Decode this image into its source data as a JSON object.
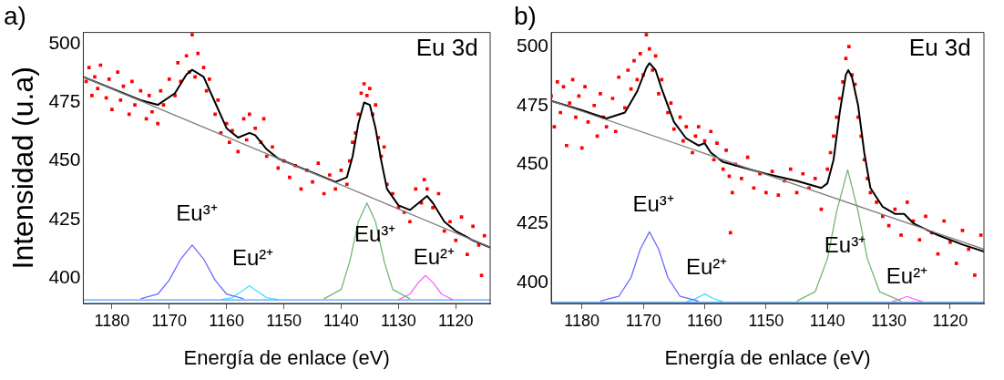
{
  "chart_data": [
    {
      "type": "scatter",
      "title": "a)",
      "xlabel": "Energía de enlace (eV)",
      "ylabel": "Intensidad (u.a)",
      "xlim": [
        1185,
        1114
      ],
      "xticks": [
        1180,
        1170,
        1160,
        1150,
        1140,
        1130,
        1120
      ],
      "ylim": [
        389,
        505
      ],
      "yticks": [
        400,
        425,
        450,
        475,
        500
      ],
      "annotations": [
        "Eu 3d",
        "Eu³⁺",
        "Eu²⁺",
        "Eu³⁺",
        "Eu²⁺"
      ],
      "series": [
        {
          "marker": "square",
          "color": "#ff0000",
          "x": [
            1184.5,
            1184,
            1183.5,
            1183,
            1182.5,
            1182,
            1181,
            1180.5,
            1180,
            1179,
            1178.5,
            1178,
            1177,
            1176.5,
            1176,
            1175,
            1174,
            1173.5,
            1173,
            1172,
            1171.5,
            1171,
            1170,
            1169,
            1168.5,
            1168,
            1167,
            1166.5,
            1166,
            1165.5,
            1165,
            1164,
            1163.5,
            1163,
            1162,
            1161.5,
            1161,
            1160,
            1159.5,
            1159,
            1158,
            1157,
            1156.5,
            1156,
            1155,
            1154,
            1153.5,
            1153,
            1152,
            1151,
            1150,
            1149,
            1148,
            1147,
            1146,
            1145,
            1144,
            1143,
            1142,
            1141,
            1140,
            1139,
            1138.5,
            1138,
            1137.5,
            1137,
            1136.5,
            1136,
            1135.5,
            1135,
            1134.5,
            1134,
            1133.5,
            1133,
            1132.5,
            1132,
            1131,
            1130,
            1129,
            1128,
            1127,
            1126,
            1125.5,
            1125,
            1124,
            1123,
            1122,
            1121,
            1120,
            1119,
            1118,
            1117,
            1116,
            1115.5,
            1115
          ],
          "values": [
            484,
            490,
            478,
            486,
            481,
            491,
            477,
            485,
            472,
            488,
            476,
            482,
            470,
            484,
            474,
            480,
            468,
            478,
            471,
            466,
            480,
            474,
            485,
            478,
            492,
            484,
            495,
            488,
            504,
            486,
            496,
            490,
            480,
            485,
            470,
            476,
            462,
            466,
            458,
            463,
            454,
            468,
            459,
            470,
            464,
            458,
            468,
            452,
            456,
            447,
            450,
            443,
            448,
            438,
            446,
            441,
            449,
            436,
            444,
            438,
            446,
            440,
            450,
            458,
            462,
            470,
            479,
            483,
            478,
            481,
            470,
            474,
            460,
            452,
            456,
            440,
            436,
            430,
            428,
            424,
            438,
            432,
            442,
            438,
            430,
            436,
            420,
            424,
            416,
            426,
            410,
            422,
            414,
            401,
            418
          ]
        },
        {
          "type": "line",
          "color": "#808080",
          "x": [
            1185,
            1114
          ],
          "values": [
            486,
            413
          ]
        },
        {
          "type": "line",
          "color": "#4da6ff",
          "x": [
            1185,
            1114
          ],
          "values": [
            390.5,
            390.5
          ]
        },
        {
          "type": "line",
          "color": "#6b6bff",
          "x": [
            1175,
            1172,
            1170,
            1168,
            1166,
            1164,
            1162,
            1160,
            1157
          ],
          "values": [
            391,
            393,
            399,
            408,
            414,
            408,
            399,
            393,
            391
          ]
        },
        {
          "type": "line",
          "color": "#40e0ff",
          "x": [
            1161,
            1159,
            1157.5,
            1156,
            1154.5,
            1153,
            1151
          ],
          "values": [
            390.6,
            391.5,
            394,
            396.5,
            394,
            391.5,
            390.6
          ]
        },
        {
          "type": "line",
          "color": "#70b870",
          "x": [
            1143,
            1140,
            1138.5,
            1137,
            1135.5,
            1134,
            1132.5,
            1131,
            1128
          ],
          "values": [
            391,
            395,
            407,
            424,
            432,
            424,
            407,
            395,
            391
          ]
        },
        {
          "type": "line",
          "color": "#ff66ff",
          "x": [
            1130,
            1128,
            1126.5,
            1125.3,
            1124,
            1122.5,
            1120.5
          ],
          "values": [
            390.6,
            393,
            398,
            401,
            398,
            393,
            390.6
          ]
        },
        {
          "type": "line",
          "color": "#000000",
          "x": [
            1185,
            1175,
            1172,
            1169,
            1167,
            1166,
            1164,
            1162,
            1160,
            1158,
            1156,
            1155,
            1153,
            1151,
            1145,
            1141,
            1139,
            1138,
            1137,
            1136,
            1135,
            1134,
            1133,
            1132,
            1130,
            1128,
            1126,
            1125,
            1124,
            1122,
            1120,
            1117,
            1114
          ],
          "values": [
            486,
            476,
            474,
            479,
            487,
            489,
            486,
            475,
            464,
            460,
            462,
            461,
            455,
            451,
            445,
            441,
            443,
            452,
            466,
            475,
            474,
            464,
            450,
            438,
            431,
            429,
            433,
            435,
            432,
            424,
            420,
            416,
            413
          ]
        }
      ]
    },
    {
      "type": "scatter",
      "title": "b)",
      "xlabel": "Energía de enlace (eV)",
      "xlim": [
        1185,
        1114.5
      ],
      "xticks": [
        1180,
        1170,
        1160,
        1150,
        1140,
        1130,
        1120
      ],
      "ylim": [
        391,
        506
      ],
      "yticks": [
        400,
        425,
        450,
        475,
        500
      ],
      "annotations": [
        "Eu 3d",
        "Eu³⁺",
        "Eu²⁺",
        "Eu³⁺",
        "Eu²⁺"
      ],
      "series": [
        {
          "marker": "square",
          "color": "#ff0000",
          "x": [
            1185,
            1184.5,
            1184,
            1183.5,
            1183,
            1182.5,
            1182,
            1181.5,
            1181,
            1180.5,
            1180,
            1179.5,
            1179,
            1178,
            1177.5,
            1177,
            1176.5,
            1176,
            1175,
            1174.5,
            1174,
            1173,
            1172.5,
            1172,
            1171.5,
            1171,
            1170.5,
            1170,
            1169.5,
            1169,
            1168.5,
            1168,
            1167.5,
            1167,
            1166,
            1165.5,
            1165,
            1164,
            1163.5,
            1163,
            1162,
            1161.5,
            1161,
            1160,
            1159,
            1158.5,
            1158,
            1157,
            1156.5,
            1156,
            1155.8,
            1155.5,
            1155,
            1154,
            1153,
            1152,
            1151,
            1150,
            1149,
            1148,
            1147,
            1146,
            1145,
            1144,
            1143,
            1142,
            1141,
            1140,
            1139.5,
            1139,
            1138.5,
            1138,
            1137.5,
            1137,
            1136.5,
            1136,
            1135.5,
            1135,
            1134.5,
            1134,
            1133.5,
            1133,
            1132,
            1131,
            1130,
            1129,
            1128,
            1127,
            1126,
            1125,
            1124,
            1123,
            1122,
            1121,
            1120,
            1119,
            1118,
            1117,
            1116,
            1115
          ],
          "values": [
            479,
            466,
            485,
            472,
            483,
            458,
            476,
            486,
            470,
            479,
            457,
            483,
            468,
            475,
            462,
            480,
            470,
            466,
            478,
            464,
            487,
            474,
            490,
            482,
            494,
            486,
            497,
            488,
            505,
            499,
            490,
            496,
            480,
            486,
            472,
            476,
            465,
            470,
            460,
            466,
            455,
            462,
            466,
            460,
            464,
            452,
            459,
            448,
            456,
            445,
            421,
            438,
            450,
            444,
            453,
            440,
            446,
            438,
            447,
            437,
            443,
            448,
            438,
            446,
            440,
            444,
            431,
            448,
            455,
            462,
            470,
            478,
            485,
            495,
            500,
            488,
            484,
            470,
            462,
            452,
            444,
            438,
            434,
            428,
            424,
            431,
            420,
            434,
            426,
            418,
            428,
            421,
            412,
            426,
            417,
            408,
            422,
            414,
            403,
            420
          ]
        },
        {
          "type": "line",
          "color": "#808080",
          "x": [
            1185,
            1114.5
          ],
          "values": [
            477,
            414
          ]
        },
        {
          "type": "line",
          "color": "#4da6ff",
          "x": [
            1185,
            1114.5
          ],
          "values": [
            391.5,
            391.5
          ]
        },
        {
          "type": "line",
          "color": "#6b6bff",
          "x": [
            1177,
            1174,
            1172,
            1170.5,
            1169,
            1167.5,
            1166,
            1164,
            1161
          ],
          "values": [
            392,
            394,
            402,
            414,
            421.4,
            414,
            402,
            394,
            392
          ]
        },
        {
          "type": "line",
          "color": "#40e0ff",
          "x": [
            1163,
            1161.5,
            1160,
            1158.5,
            1157
          ],
          "values": [
            391.7,
            393,
            395,
            393,
            391.7
          ]
        },
        {
          "type": "line",
          "color": "#70b870",
          "x": [
            1145,
            1142,
            1140,
            1138.5,
            1136.7,
            1135,
            1133.5,
            1131.5,
            1128
          ],
          "values": [
            392,
            396,
            410,
            430,
            447.7,
            430,
            410,
            396,
            392
          ]
        },
        {
          "type": "line",
          "color": "#ff66ff",
          "x": [
            1129.5,
            1128,
            1127,
            1126,
            1124.5
          ],
          "values": [
            391.7,
            393,
            394,
            393,
            391.7
          ]
        },
        {
          "type": "line",
          "color": "#000000",
          "x": [
            1185,
            1180,
            1176,
            1173,
            1171,
            1169.5,
            1169,
            1168,
            1167,
            1165,
            1163,
            1161,
            1160,
            1159,
            1157,
            1150,
            1145,
            1141,
            1140,
            1139,
            1138,
            1137,
            1136.6,
            1136,
            1135,
            1134,
            1133,
            1131,
            1129,
            1127.5,
            1126,
            1122,
            1118,
            1114.5
          ],
          "values": [
            477,
            473,
            469.5,
            472,
            481,
            491,
            493,
            490,
            482,
            468,
            461,
            458,
            459,
            455,
            451,
            446,
            443,
            440,
            442,
            452,
            472,
            488,
            490,
            487,
            475,
            455,
            440,
            432,
            429,
            429,
            425,
            420,
            416,
            413
          ]
        }
      ]
    }
  ]
}
